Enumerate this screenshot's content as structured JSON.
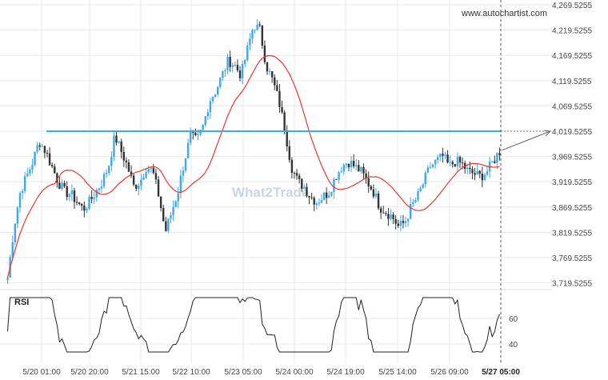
{
  "source_label": "www.autochartist.com",
  "watermark": "What2Trade",
  "colors": {
    "candle_up": "#3fa9e8",
    "candle_down": "#333333",
    "ma_line": "#e8382e",
    "level_line": "#3aaee0",
    "rsi_line": "#222222",
    "grid": "#e9e9e9"
  },
  "chart_data": [
    {
      "type": "candlestick",
      "title": "",
      "price_axis": {
        "ticks": [
          "4,269.5255",
          "4,219.5255",
          "4,169.5255",
          "4,119.5255",
          "4,069.5255",
          "4,019.5255",
          "3,969.5255",
          "3,919.5255",
          "3,869.5255",
          "3,819.5255",
          "3,769.5255",
          "3,719.5255"
        ],
        "range": [
          3690,
          4280
        ]
      },
      "time_axis": {
        "ticks": [
          "5/20 01:00",
          "5/20 20:00",
          "5/21 15:00",
          "5/22 10:00",
          "5/23 05:00",
          "5/24 00:00",
          "5/24 19:00",
          "5/25 14:00",
          "5/26 09:00",
          "5/27 05:00"
        ],
        "highlighted": "5/27 05:00"
      },
      "level": {
        "value": 4019.5255,
        "label": "4,019.5255"
      },
      "close_path": [
        3730,
        3830,
        3900,
        3930,
        3960,
        4000,
        3980,
        3950,
        3920,
        3900,
        3895,
        3880,
        3865,
        3880,
        3900,
        3920,
        3950,
        4010,
        3980,
        3950,
        3910,
        3920,
        3950,
        3940,
        3890,
        3820,
        3860,
        3900,
        3960,
        4010,
        4000,
        4030,
        4080,
        4100,
        4130,
        4160,
        4150,
        4130,
        4180,
        4230,
        4220,
        4150,
        4120,
        4080,
        4020,
        3950,
        3920,
        3910,
        3890,
        3880,
        3890,
        3900,
        3930,
        3950,
        3960,
        3950,
        3940,
        3920,
        3900,
        3870,
        3860,
        3850,
        3830,
        3840,
        3870,
        3890,
        3920,
        3950,
        3960,
        3970,
        3950,
        3960,
        3955,
        3940,
        3935,
        3930,
        3940,
        3960,
        3980
      ]
    },
    {
      "type": "line",
      "name": "RSI",
      "label": "RSI",
      "levels": {
        "upper": "60",
        "lower": "40"
      }
    }
  ]
}
